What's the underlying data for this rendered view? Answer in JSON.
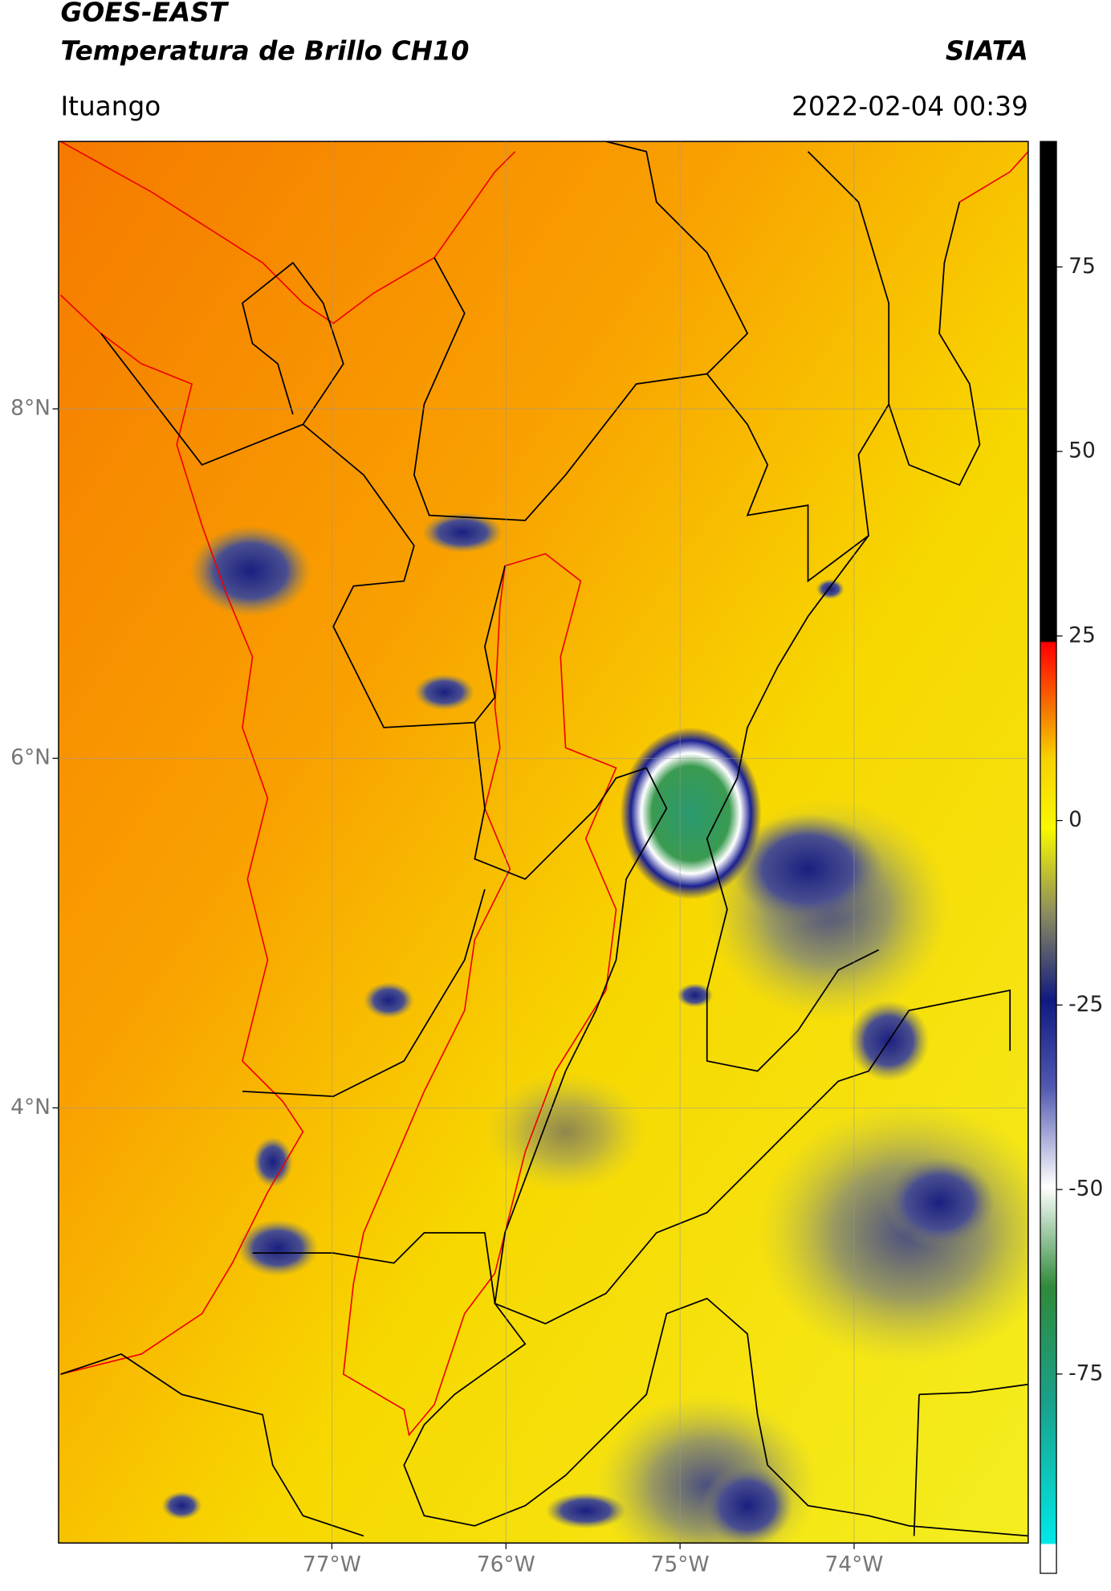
{
  "header": {
    "title": "GOES-EAST",
    "subtitle": "Temperatura de Brillo CH10",
    "source": "SIATA",
    "location": "Ituango",
    "datetime": "2022-02-04 00:39"
  },
  "map": {
    "lat_lim": [
      1.51,
      9.53
    ],
    "lon_lim": [
      -78.57,
      -73.0
    ],
    "lat_ticks": [
      {
        "value": 8,
        "label": "8°N"
      },
      {
        "value": 6,
        "label": "6°N"
      },
      {
        "value": 4,
        "label": "4°N"
      }
    ],
    "lon_ticks": [
      {
        "value": -77,
        "label": "77°W"
      },
      {
        "value": -76,
        "label": "76°W"
      },
      {
        "value": -75,
        "label": "75°W"
      },
      {
        "value": -74,
        "label": "74°W"
      }
    ]
  },
  "colorbar": {
    "lim": [
      -102,
      92
    ],
    "ticks": [
      75,
      50,
      25,
      0,
      -25,
      -50,
      -75
    ]
  }
}
